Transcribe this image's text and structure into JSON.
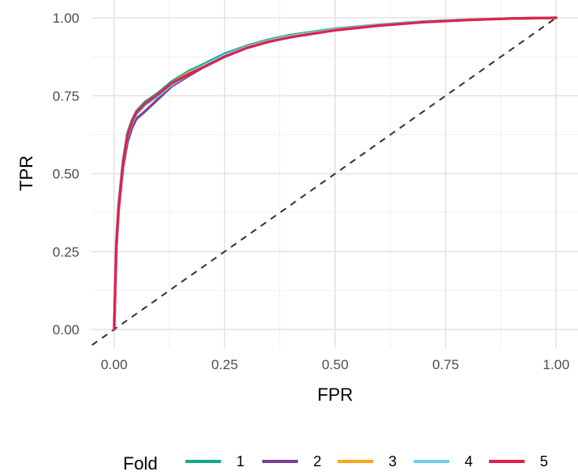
{
  "chart_data": {
    "type": "line",
    "title": "",
    "xlabel": "FPR",
    "ylabel": "TPR",
    "xlim": [
      0,
      1
    ],
    "ylim": [
      0,
      1
    ],
    "x_ticks": [
      "0.00",
      "0.25",
      "0.50",
      "0.75",
      "1.00"
    ],
    "y_ticks": [
      "0.00",
      "0.25",
      "0.50",
      "0.75",
      "1.00"
    ],
    "grid": true,
    "legend": {
      "title": "Fold",
      "position": "bottom"
    },
    "reference_line": {
      "style": "dashed",
      "from": [
        0,
        0
      ],
      "to": [
        1,
        1
      ],
      "color": "#333333"
    },
    "series": [
      {
        "name": "1",
        "color": "#1aa78e",
        "x": [
          0,
          0.005,
          0.01,
          0.02,
          0.03,
          0.04,
          0.05,
          0.07,
          0.1,
          0.13,
          0.17,
          0.2,
          0.25,
          0.3,
          0.35,
          0.4,
          0.5,
          0.6,
          0.7,
          0.8,
          0.9,
          1.0
        ],
        "y": [
          0,
          0.28,
          0.4,
          0.54,
          0.63,
          0.67,
          0.7,
          0.73,
          0.76,
          0.795,
          0.83,
          0.85,
          0.885,
          0.91,
          0.93,
          0.945,
          0.965,
          0.978,
          0.988,
          0.994,
          0.998,
          1.0
        ]
      },
      {
        "name": "2",
        "color": "#7b3f98",
        "x": [
          0,
          0.005,
          0.01,
          0.02,
          0.03,
          0.04,
          0.05,
          0.07,
          0.1,
          0.13,
          0.17,
          0.2,
          0.25,
          0.3,
          0.35,
          0.4,
          0.5,
          0.6,
          0.7,
          0.8,
          0.9,
          1.0
        ],
        "y": [
          0,
          0.26,
          0.38,
          0.52,
          0.6,
          0.645,
          0.675,
          0.7,
          0.74,
          0.78,
          0.815,
          0.84,
          0.875,
          0.905,
          0.925,
          0.94,
          0.962,
          0.976,
          0.987,
          0.993,
          0.998,
          1.0
        ]
      },
      {
        "name": "3",
        "color": "#f5a623",
        "x": [
          0,
          0.005,
          0.01,
          0.02,
          0.03,
          0.04,
          0.05,
          0.07,
          0.1,
          0.13,
          0.17,
          0.2,
          0.25,
          0.3,
          0.35,
          0.4,
          0.5,
          0.6,
          0.7,
          0.8,
          0.9,
          1.0
        ],
        "y": [
          0,
          0.27,
          0.39,
          0.53,
          0.62,
          0.665,
          0.695,
          0.725,
          0.755,
          0.79,
          0.825,
          0.845,
          0.88,
          0.907,
          0.927,
          0.942,
          0.963,
          0.977,
          0.987,
          0.994,
          0.998,
          1.0
        ]
      },
      {
        "name": "4",
        "color": "#6ccff6",
        "x": [
          0,
          0.005,
          0.01,
          0.02,
          0.03,
          0.04,
          0.05,
          0.07,
          0.1,
          0.13,
          0.17,
          0.2,
          0.25,
          0.3,
          0.35,
          0.4,
          0.5,
          0.6,
          0.7,
          0.8,
          0.9,
          1.0
        ],
        "y": [
          0,
          0.27,
          0.39,
          0.53,
          0.615,
          0.66,
          0.69,
          0.72,
          0.75,
          0.785,
          0.82,
          0.845,
          0.88,
          0.906,
          0.926,
          0.941,
          0.962,
          0.977,
          0.987,
          0.994,
          0.998,
          1.0
        ]
      },
      {
        "name": "5",
        "color": "#e0214d",
        "x": [
          0,
          0.005,
          0.01,
          0.02,
          0.03,
          0.04,
          0.05,
          0.07,
          0.1,
          0.13,
          0.17,
          0.2,
          0.25,
          0.3,
          0.35,
          0.4,
          0.5,
          0.6,
          0.7,
          0.8,
          0.9,
          1.0
        ],
        "y": [
          0,
          0.27,
          0.39,
          0.53,
          0.62,
          0.665,
          0.695,
          0.725,
          0.755,
          0.79,
          0.82,
          0.84,
          0.875,
          0.903,
          0.923,
          0.938,
          0.96,
          0.975,
          0.986,
          0.993,
          0.998,
          1.0
        ]
      }
    ]
  }
}
